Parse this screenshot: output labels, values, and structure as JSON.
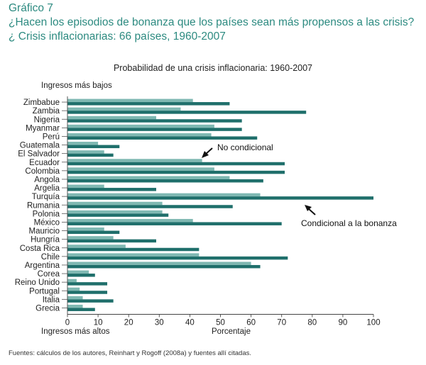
{
  "header": {
    "figure_number": "Gráfico 7",
    "title": "¿Hacen los episodios de bonanza que los países sean más propensos a las crisis?¿ Crisis inflacionarias: 66 países, 1960-2007"
  },
  "chart_data": {
    "type": "bar",
    "orientation": "horizontal",
    "title": "Probabilidad de una crisis inflacionaria: 1960-2007",
    "top_label": "Ingresos más bajos",
    "bottom_label": "Ingresos más altos",
    "xlabel": "Porcentaje",
    "xlim": [
      0,
      100
    ],
    "xticks": [
      0,
      10,
      20,
      30,
      40,
      50,
      60,
      70,
      80,
      90,
      100
    ],
    "categories": [
      "Zimbabue",
      "Zambia",
      "Nigeria",
      "Myanmar",
      "Perú",
      "Guatemala",
      "El Salvador",
      "Ecuador",
      "Colombia",
      "Angola",
      "Argelia",
      "Turquía",
      "Rumania",
      "Polonia",
      "México",
      "Mauricio",
      "Hungría",
      "Costa Rica",
      "Chile",
      "Argentina",
      "Corea",
      "Reino Unido",
      "Portugal",
      "Italia",
      "Grecia"
    ],
    "series": [
      {
        "name": "No condicional",
        "color": "#7fb8b2",
        "values": [
          41,
          37,
          29,
          48,
          47,
          10,
          12,
          44,
          48,
          53,
          12,
          63,
          31,
          31,
          41,
          12,
          15,
          19,
          43,
          60,
          7,
          3,
          4,
          5,
          5
        ]
      },
      {
        "name": "Condicional a la bonanza",
        "color": "#1f6f6b",
        "values": [
          53,
          78,
          57,
          57,
          62,
          17,
          15,
          71,
          71,
          64,
          29,
          100,
          54,
          33,
          70,
          17,
          29,
          43,
          72,
          63,
          9,
          13,
          13,
          15,
          9
        ]
      }
    ],
    "annotations": [
      "No condicional",
      "Condicional a la bonanza"
    ]
  },
  "source": "Fuentes: cálculos de los autores, Reinhart y Rogoff (2008a) y fuentes allí citadas."
}
